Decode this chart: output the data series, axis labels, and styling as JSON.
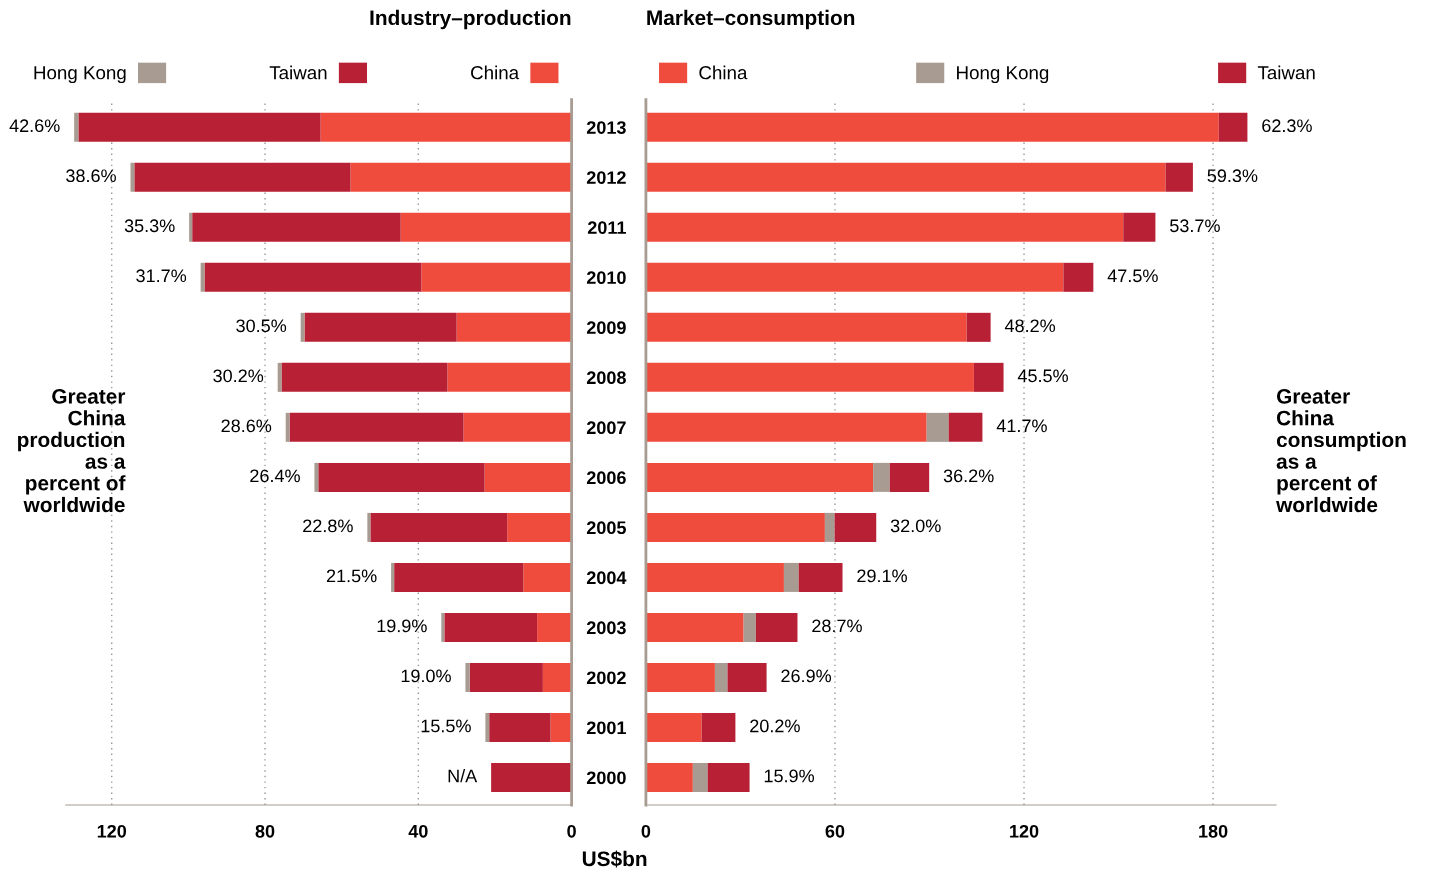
{
  "chart_data": [
    {
      "type": "bar",
      "orientation": "horizontal",
      "stacked": true,
      "title": "Industry–production",
      "xlabel": "US$bn",
      "categories": [
        "2013",
        "2012",
        "2011",
        "2010",
        "2009",
        "2008",
        "2007",
        "2006",
        "2005",
        "2004",
        "2003",
        "2002",
        "2001",
        "2000"
      ],
      "series": [
        {
          "name": "China",
          "color": "#f04c3e",
          "values": [
            65.5,
            57.7,
            44.6,
            39.2,
            30.0,
            32.4,
            28.2,
            22.7,
            16.8,
            12.6,
            9.0,
            7.5,
            5.5,
            null
          ]
        },
        {
          "name": "Taiwan",
          "color": "#b82035",
          "values": [
            63.2,
            56.4,
            54.4,
            56.6,
            39.7,
            43.3,
            45.4,
            43.4,
            35.7,
            33.7,
            24.2,
            19.1,
            16.0,
            21.0
          ]
        },
        {
          "name": "Hong Kong",
          "color": "#a89c92",
          "values": [
            1.1,
            1.0,
            0.8,
            1.0,
            1.0,
            1.0,
            1.0,
            1.0,
            0.8,
            0.8,
            0.8,
            1.1,
            1.0,
            null
          ]
        }
      ],
      "xlim": [
        132,
        0
      ],
      "xticks": [
        120,
        80,
        40,
        0
      ],
      "grid": "x",
      "legend": "top",
      "tick_labels": "x",
      "annotations": [
        "Greater\nChina\nproduction\nas a\npercent of\nworldwide",
        {
          "text": "42.6%",
          "x": 129.8,
          "y": "2013"
        },
        {
          "text": "38.6%",
          "x": 115.1,
          "y": "2012"
        },
        {
          "text": "35.3%",
          "x": 99.8,
          "y": "2011"
        },
        {
          "text": "31.7%",
          "x": 96.8,
          "y": "2010"
        },
        {
          "text": "30.5%",
          "x": 70.7,
          "y": "2009"
        },
        {
          "text": "30.2%",
          "x": 76.7,
          "y": "2008"
        },
        {
          "text": "28.6%",
          "x": 74.6,
          "y": "2007"
        },
        {
          "text": "26.4%",
          "x": 67.1,
          "y": "2006"
        },
        {
          "text": "22.8%",
          "x": 53.3,
          "y": "2005"
        },
        {
          "text": "21.5%",
          "x": 47.1,
          "y": "2004"
        },
        {
          "text": "19.9%",
          "x": 34.0,
          "y": "2003"
        },
        {
          "text": "19.0%",
          "x": 27.7,
          "y": "2002"
        },
        {
          "text": "15.5%",
          "x": 22.5,
          "y": "2001"
        },
        {
          "text": "N/A",
          "x": 21.0,
          "y": "2000"
        }
      ]
    },
    {
      "type": "bar",
      "orientation": "horizontal",
      "stacked": true,
      "title": "Market–consumption",
      "categories": [
        "2013",
        "2012",
        "2011",
        "2010",
        "2009",
        "2008",
        "2007",
        "2006",
        "2005",
        "2004",
        "2003",
        "2002",
        "2001",
        "2000"
      ],
      "series": [
        {
          "name": "China",
          "color": "#f04c3e",
          "values": [
            181.8,
            164.9,
            151.5,
            132.5,
            101.8,
            104.1,
            89.1,
            72.1,
            56.8,
            43.8,
            31.0,
            21.9,
            17.7,
            14.9
          ]
        },
        {
          "name": "Hong Kong",
          "color": "#a89c92",
          "values": [
            null,
            null,
            null,
            null,
            null,
            null,
            7.0,
            5.3,
            3.1,
            4.7,
            3.9,
            4.0,
            null,
            4.7
          ]
        },
        {
          "name": "Taiwan",
          "color": "#b82035",
          "values": [
            9.1,
            8.7,
            10.2,
            9.5,
            7.6,
            9.4,
            10.7,
            12.5,
            13.2,
            13.9,
            13.2,
            12.4,
            10.7,
            13.3
          ]
        }
      ],
      "xlim": [
        0,
        200
      ],
      "xticks": [
        0,
        60,
        120,
        180
      ],
      "grid": "x",
      "legend": "top",
      "annotations": [
        "Greater\nChina\nconsumption\nas a\npercent of\nworldwide",
        {
          "text": "62.3%",
          "x": 190.9,
          "y": "2013"
        },
        {
          "text": "59.3%",
          "x": 173.6,
          "y": "2012"
        },
        {
          "text": "53.7%",
          "x": 161.7,
          "y": "2011"
        },
        {
          "text": "47.5%",
          "x": 142.0,
          "y": "2010"
        },
        {
          "text": "48.2%",
          "x": 109.4,
          "y": "2009"
        },
        {
          "text": "45.5%",
          "x": 113.5,
          "y": "2008"
        },
        {
          "text": "41.7%",
          "x": 106.8,
          "y": "2007"
        },
        {
          "text": "36.2%",
          "x": 89.9,
          "y": "2006"
        },
        {
          "text": "32.0%",
          "x": 73.1,
          "y": "2005"
        },
        {
          "text": "29.1%",
          "x": 62.4,
          "y": "2004"
        },
        {
          "text": "28.7%",
          "x": 48.1,
          "y": "2003"
        },
        {
          "text": "26.9%",
          "x": 38.3,
          "y": "2002"
        },
        {
          "text": "20.2%",
          "x": 28.4,
          "y": "2001"
        },
        {
          "text": "15.9%",
          "x": 32.9,
          "y": "2000"
        }
      ]
    }
  ]
}
